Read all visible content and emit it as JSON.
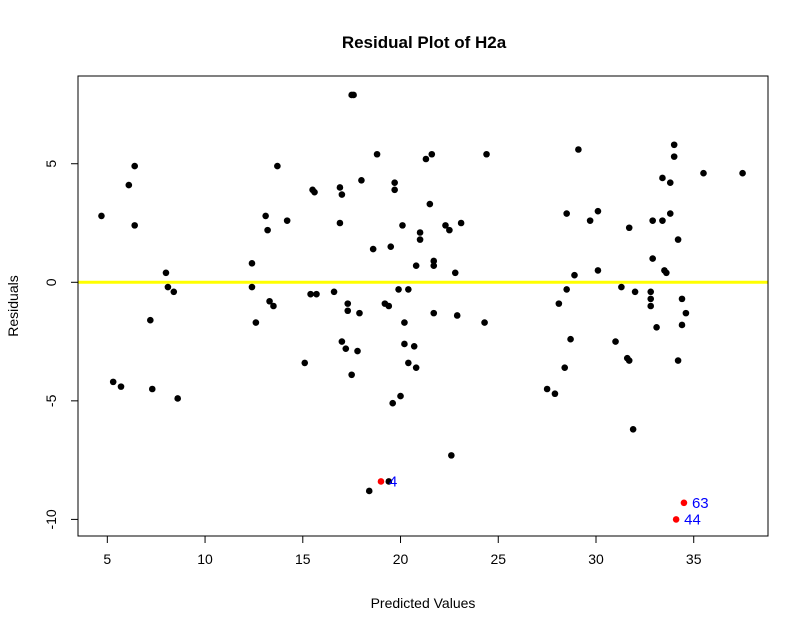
{
  "chart_data": {
    "type": "scatter",
    "title": "Residual Plot of H2a",
    "xlabel": "Predicted Values",
    "ylabel": "Residuals",
    "xlim": [
      3.5,
      38.8
    ],
    "ylim": [
      -10.7,
      8.7
    ],
    "x_ticks": [
      5,
      10,
      15,
      20,
      25,
      30,
      35
    ],
    "y_ticks": [
      -10,
      -5,
      0,
      5
    ],
    "reference_line": {
      "y": 0,
      "color": "#ffff00"
    },
    "point_color": "#000000",
    "outlier_color": "#ff0000",
    "outlier_label_color": "#0000ff",
    "grid": false,
    "points": [
      [
        4.7,
        2.8
      ],
      [
        5.3,
        -4.2
      ],
      [
        5.7,
        -4.4
      ],
      [
        6.1,
        4.1
      ],
      [
        6.4,
        4.9
      ],
      [
        6.4,
        2.4
      ],
      [
        7.2,
        -1.6
      ],
      [
        7.3,
        -4.5
      ],
      [
        8.0,
        0.4
      ],
      [
        8.1,
        -0.2
      ],
      [
        8.4,
        -0.4
      ],
      [
        8.6,
        -4.9
      ],
      [
        12.4,
        0.8
      ],
      [
        12.4,
        -0.2
      ],
      [
        12.6,
        -1.7
      ],
      [
        13.1,
        2.8
      ],
      [
        13.2,
        2.2
      ],
      [
        13.3,
        -0.8
      ],
      [
        13.5,
        -1.0
      ],
      [
        13.7,
        4.9
      ],
      [
        14.2,
        2.6
      ],
      [
        15.1,
        -3.4
      ],
      [
        15.4,
        -0.5
      ],
      [
        15.5,
        3.9
      ],
      [
        15.6,
        3.8
      ],
      [
        15.7,
        -0.5
      ],
      [
        16.6,
        -0.4
      ],
      [
        16.9,
        2.5
      ],
      [
        16.9,
        4.0
      ],
      [
        17.0,
        3.7
      ],
      [
        17.0,
        -2.5
      ],
      [
        17.2,
        -2.8
      ],
      [
        17.3,
        -0.9
      ],
      [
        17.3,
        -1.2
      ],
      [
        17.5,
        -3.9
      ],
      [
        17.5,
        7.9
      ],
      [
        17.6,
        7.9
      ],
      [
        17.8,
        -2.9
      ],
      [
        17.9,
        -1.3
      ],
      [
        18.0,
        4.3
      ],
      [
        18.6,
        1.4
      ],
      [
        18.8,
        5.4
      ],
      [
        19.2,
        -0.9
      ],
      [
        19.4,
        -1.0
      ],
      [
        19.5,
        1.5
      ],
      [
        19.6,
        -5.1
      ],
      [
        19.7,
        4.2
      ],
      [
        19.7,
        3.9
      ],
      [
        19.9,
        -0.3
      ],
      [
        20.0,
        -4.8
      ],
      [
        20.1,
        2.4
      ],
      [
        20.2,
        -1.7
      ],
      [
        20.2,
        -2.6
      ],
      [
        20.4,
        -3.4
      ],
      [
        20.4,
        -0.3
      ],
      [
        20.7,
        -2.7
      ],
      [
        20.8,
        0.7
      ],
      [
        20.8,
        -3.6
      ],
      [
        21.0,
        2.1
      ],
      [
        21.0,
        1.8
      ],
      [
        21.3,
        5.2
      ],
      [
        21.5,
        3.3
      ],
      [
        21.6,
        5.4
      ],
      [
        21.7,
        0.9
      ],
      [
        21.7,
        0.7
      ],
      [
        21.7,
        -1.3
      ],
      [
        22.3,
        2.4
      ],
      [
        22.5,
        2.2
      ],
      [
        22.6,
        -7.3
      ],
      [
        22.8,
        0.4
      ],
      [
        22.9,
        -1.4
      ],
      [
        23.1,
        2.5
      ],
      [
        24.3,
        -1.7
      ],
      [
        24.4,
        5.4
      ],
      [
        27.5,
        -4.5
      ],
      [
        27.9,
        -4.7
      ],
      [
        28.1,
        -0.9
      ],
      [
        28.4,
        -3.6
      ],
      [
        28.5,
        -0.3
      ],
      [
        28.5,
        2.9
      ],
      [
        28.7,
        -2.4
      ],
      [
        28.9,
        0.3
      ],
      [
        29.1,
        5.6
      ],
      [
        29.7,
        2.6
      ],
      [
        30.1,
        3.0
      ],
      [
        30.1,
        0.5
      ],
      [
        31.0,
        -2.5
      ],
      [
        31.3,
        -0.2
      ],
      [
        31.6,
        -3.2
      ],
      [
        31.7,
        -3.3
      ],
      [
        31.7,
        2.3
      ],
      [
        31.9,
        -6.2
      ],
      [
        32.0,
        -0.4
      ],
      [
        32.8,
        -0.4
      ],
      [
        32.8,
        -0.7
      ],
      [
        32.8,
        -1.0
      ],
      [
        32.9,
        2.6
      ],
      [
        32.9,
        1.0
      ],
      [
        33.1,
        -1.9
      ],
      [
        33.4,
        2.6
      ],
      [
        33.4,
        4.4
      ],
      [
        33.5,
        0.5
      ],
      [
        33.6,
        0.4
      ],
      [
        33.8,
        4.2
      ],
      [
        33.8,
        2.9
      ],
      [
        34.0,
        5.3
      ],
      [
        34.0,
        5.8
      ],
      [
        34.2,
        1.8
      ],
      [
        34.2,
        -3.3
      ],
      [
        34.4,
        -0.7
      ],
      [
        34.4,
        -1.8
      ],
      [
        34.6,
        -1.3
      ],
      [
        35.5,
        4.6
      ],
      [
        37.5,
        4.6
      ],
      [
        18.4,
        -8.8
      ],
      [
        19.4,
        -8.4
      ]
    ],
    "outliers": [
      {
        "x": 19.0,
        "y": -8.4,
        "label": "4"
      },
      {
        "x": 34.5,
        "y": -9.3,
        "label": "63"
      },
      {
        "x": 34.1,
        "y": -10.0,
        "label": "44"
      }
    ]
  }
}
